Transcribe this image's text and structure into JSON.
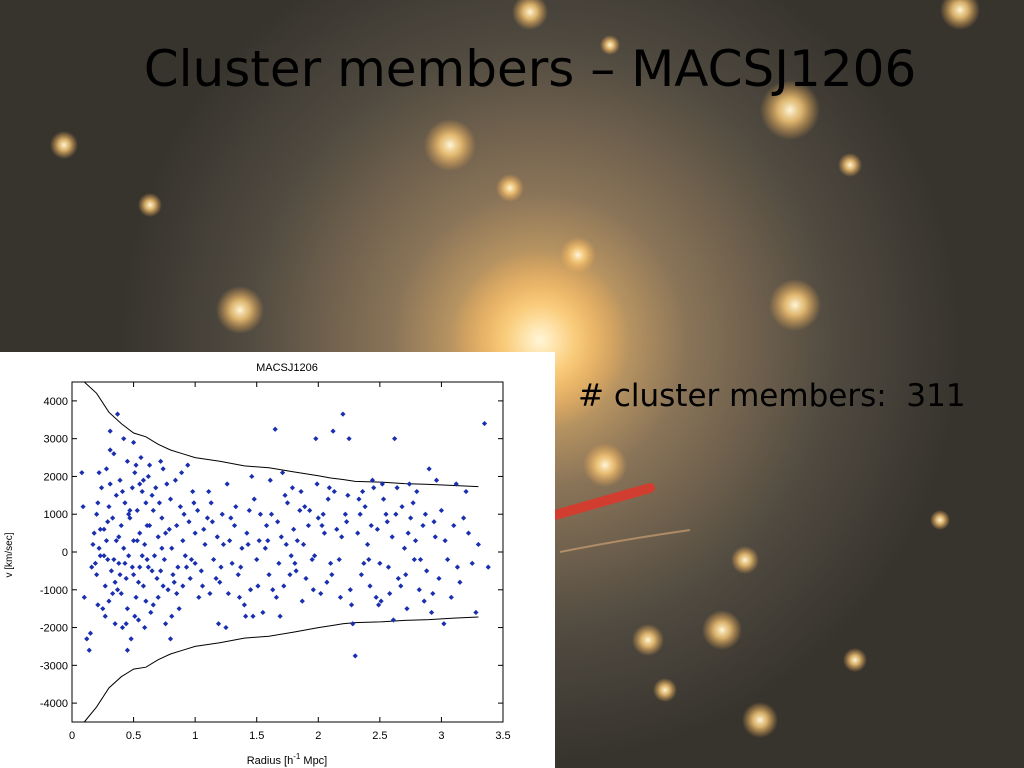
{
  "slide": {
    "title": "Cluster members – MACSJ1206",
    "member_count_text": "# cluster members:  311"
  },
  "chart_data": {
    "type": "scatter",
    "title": "MACSJ1206",
    "xlabel_parts": [
      "Radius [h",
      "-1",
      " Mpc]"
    ],
    "ylabel": "v [km/sec]",
    "xlim": [
      0,
      3.5
    ],
    "ylim": [
      -4500,
      4500
    ],
    "xticks": [
      "0",
      "0.5",
      "1",
      "1.5",
      "2",
      "2.5",
      "3",
      "3.5"
    ],
    "yticks": [
      "-4000",
      "-3000",
      "-2000",
      "-1000",
      "0",
      "1000",
      "2000",
      "3000",
      "4000"
    ],
    "grid": false,
    "marker_color": "#1a2fb0",
    "caustic_upper": [
      [
        0.1,
        4500
      ],
      [
        0.2,
        4200
      ],
      [
        0.3,
        3700
      ],
      [
        0.4,
        3400
      ],
      [
        0.5,
        3150
      ],
      [
        0.6,
        3050
      ],
      [
        0.7,
        2850
      ],
      [
        0.8,
        2700
      ],
      [
        0.9,
        2600
      ],
      [
        1.0,
        2500
      ],
      [
        1.2,
        2400
      ],
      [
        1.4,
        2280
      ],
      [
        1.6,
        2230
      ],
      [
        1.8,
        2120
      ],
      [
        2.0,
        2020
      ],
      [
        2.1,
        1960
      ],
      [
        2.2,
        1920
      ],
      [
        2.3,
        1870
      ],
      [
        2.5,
        1850
      ],
      [
        2.7,
        1810
      ],
      [
        2.9,
        1790
      ],
      [
        3.1,
        1760
      ],
      [
        3.3,
        1730
      ]
    ],
    "caustic_lower": [
      [
        0.1,
        -4500
      ],
      [
        0.2,
        -4100
      ],
      [
        0.3,
        -3600
      ],
      [
        0.4,
        -3300
      ],
      [
        0.5,
        -3100
      ],
      [
        0.6,
        -3050
      ],
      [
        0.7,
        -2850
      ],
      [
        0.8,
        -2700
      ],
      [
        0.9,
        -2600
      ],
      [
        1.0,
        -2500
      ],
      [
        1.2,
        -2400
      ],
      [
        1.4,
        -2280
      ],
      [
        1.6,
        -2230
      ],
      [
        1.8,
        -2120
      ],
      [
        2.0,
        -2000
      ],
      [
        2.1,
        -1950
      ],
      [
        2.2,
        -1900
      ],
      [
        2.3,
        -1870
      ],
      [
        2.5,
        -1850
      ],
      [
        2.7,
        -1810
      ],
      [
        2.9,
        -1790
      ],
      [
        3.1,
        -1750
      ],
      [
        3.3,
        -1720
      ]
    ],
    "points": [
      [
        0.08,
        2100
      ],
      [
        0.09,
        1200
      ],
      [
        0.1,
        -1200
      ],
      [
        0.12,
        -2300
      ],
      [
        0.14,
        -2600
      ],
      [
        0.15,
        -2150
      ],
      [
        0.16,
        -400
      ],
      [
        0.17,
        200
      ],
      [
        0.18,
        500
      ],
      [
        0.2,
        1000
      ],
      [
        0.2,
        -600
      ],
      [
        0.21,
        -1400
      ],
      [
        0.22,
        100
      ],
      [
        0.22,
        2100
      ],
      [
        0.23,
        -100
      ],
      [
        0.24,
        1700
      ],
      [
        0.25,
        -1500
      ],
      [
        0.26,
        600
      ],
      [
        0.27,
        -900
      ],
      [
        0.28,
        300
      ],
      [
        0.28,
        2200
      ],
      [
        0.29,
        -200
      ],
      [
        0.3,
        1200
      ],
      [
        0.3,
        -1300
      ],
      [
        0.31,
        3200
      ],
      [
        0.32,
        -500
      ],
      [
        0.33,
        900
      ],
      [
        0.34,
        2600
      ],
      [
        0.35,
        -800
      ],
      [
        0.36,
        1500
      ],
      [
        0.37,
        3650
      ],
      [
        0.38,
        -300
      ],
      [
        0.38,
        400
      ],
      [
        0.39,
        1900
      ],
      [
        0.4,
        -1100
      ],
      [
        0.4,
        700
      ],
      [
        0.41,
        -2000
      ],
      [
        0.42,
        100
      ],
      [
        0.43,
        1300
      ],
      [
        0.44,
        -700
      ],
      [
        0.45,
        2400
      ],
      [
        0.45,
        -1500
      ],
      [
        0.46,
        -100
      ],
      [
        0.47,
        900
      ],
      [
        0.48,
        -2300
      ],
      [
        0.49,
        1700
      ],
      [
        0.5,
        300
      ],
      [
        0.5,
        -600
      ],
      [
        0.51,
        2100
      ],
      [
        0.52,
        -1200
      ],
      [
        0.53,
        1100
      ],
      [
        0.54,
        -1800
      ],
      [
        0.55,
        500
      ],
      [
        0.55,
        -400
      ],
      [
        0.56,
        2500
      ],
      [
        0.57,
        1600
      ],
      [
        0.58,
        -900
      ],
      [
        0.59,
        200
      ],
      [
        0.6,
        1300
      ],
      [
        0.6,
        -1300
      ],
      [
        0.61,
        -200
      ],
      [
        0.62,
        2000
      ],
      [
        0.63,
        700
      ],
      [
        0.64,
        -1600
      ],
      [
        0.65,
        -500
      ],
      [
        0.66,
        1100
      ],
      [
        0.67,
        -100
      ],
      [
        0.68,
        1700
      ],
      [
        0.7,
        400
      ],
      [
        0.7,
        -1200
      ],
      [
        0.72,
        -500
      ],
      [
        0.73,
        900
      ],
      [
        0.74,
        2200
      ],
      [
        0.75,
        -200
      ],
      [
        0.76,
        500
      ],
      [
        0.78,
        -1000
      ],
      [
        0.8,
        1400
      ],
      [
        0.8,
        -2300
      ],
      [
        0.81,
        100
      ],
      [
        0.82,
        -600
      ],
      [
        0.84,
        1900
      ],
      [
        0.85,
        700
      ],
      [
        0.86,
        -400
      ],
      [
        0.88,
        1200
      ],
      [
        0.9,
        -900
      ],
      [
        0.9,
        300
      ],
      [
        0.92,
        -100
      ],
      [
        0.94,
        2300
      ],
      [
        0.95,
        800
      ],
      [
        0.96,
        -700
      ],
      [
        0.98,
        1600
      ],
      [
        1.0,
        -300
      ],
      [
        1.0,
        500
      ],
      [
        1.02,
        1100
      ],
      [
        1.05,
        -500
      ],
      [
        1.08,
        200
      ],
      [
        1.1,
        900
      ],
      [
        1.12,
        -1100
      ],
      [
        1.15,
        -200
      ],
      [
        1.18,
        400
      ],
      [
        1.2,
        -800
      ],
      [
        1.22,
        1000
      ],
      [
        1.25,
        -2000
      ],
      [
        1.28,
        300
      ],
      [
        1.3,
        -300
      ],
      [
        1.32,
        700
      ],
      [
        1.35,
        -600
      ],
      [
        1.38,
        100
      ],
      [
        1.4,
        -1400
      ],
      [
        1.42,
        500
      ],
      [
        1.45,
        -1000
      ],
      [
        1.48,
        1400
      ],
      [
        1.5,
        -200
      ],
      [
        1.52,
        300
      ],
      [
        1.55,
        -1600
      ],
      [
        1.58,
        700
      ],
      [
        1.6,
        -600
      ],
      [
        1.62,
        1000
      ],
      [
        1.65,
        3250
      ],
      [
        1.68,
        -300
      ],
      [
        1.7,
        400
      ],
      [
        1.72,
        -900
      ],
      [
        1.75,
        1300
      ],
      [
        1.78,
        -100
      ],
      [
        1.8,
        600
      ],
      [
        1.82,
        -500
      ],
      [
        1.85,
        1100
      ],
      [
        1.88,
        200
      ],
      [
        1.9,
        -700
      ],
      [
        1.92,
        700
      ],
      [
        1.95,
        -200
      ],
      [
        1.98,
        3000
      ],
      [
        2.0,
        900
      ],
      [
        2.02,
        -1100
      ],
      [
        2.05,
        500
      ],
      [
        2.08,
        1400
      ],
      [
        2.1,
        -300
      ],
      [
        2.12,
        3200
      ],
      [
        2.15,
        600
      ],
      [
        2.18,
        -1200
      ],
      [
        2.2,
        3650
      ],
      [
        2.22,
        1000
      ],
      [
        2.25,
        3000
      ],
      [
        2.28,
        -1900
      ],
      [
        2.3,
        -2750
      ],
      [
        2.32,
        500
      ],
      [
        2.35,
        -600
      ],
      [
        2.38,
        1200
      ],
      [
        2.4,
        200
      ],
      [
        2.42,
        -900
      ],
      [
        2.45,
        1700
      ],
      [
        2.48,
        600
      ],
      [
        2.5,
        -300
      ],
      [
        2.52,
        1800
      ],
      [
        2.55,
        1000
      ],
      [
        2.58,
        -1100
      ],
      [
        2.6,
        400
      ],
      [
        2.62,
        3000
      ],
      [
        2.65,
        -700
      ],
      [
        2.68,
        1200
      ],
      [
        2.7,
        100
      ],
      [
        2.72,
        -1500
      ],
      [
        2.75,
        900
      ],
      [
        2.78,
        -200
      ],
      [
        2.8,
        1600
      ],
      [
        2.82,
        -1000
      ],
      [
        2.85,
        700
      ],
      [
        2.88,
        -500
      ],
      [
        2.9,
        2200
      ],
      [
        2.92,
        -1600
      ],
      [
        2.95,
        400
      ],
      [
        2.98,
        -700
      ],
      [
        3.0,
        1100
      ],
      [
        3.05,
        -200
      ],
      [
        3.1,
        700
      ],
      [
        3.15,
        -800
      ],
      [
        3.2,
        1600
      ],
      [
        3.22,
        500
      ],
      [
        3.25,
        -300
      ],
      [
        3.3,
        200
      ],
      [
        3.35,
        3400
      ],
      [
        3.38,
        -400
      ],
      [
        0.26,
        -100
      ],
      [
        0.29,
        800
      ],
      [
        0.33,
        -1100
      ],
      [
        0.36,
        300
      ],
      [
        0.39,
        -600
      ],
      [
        0.43,
        -300
      ],
      [
        0.47,
        1100
      ],
      [
        0.51,
        -1700
      ],
      [
        0.53,
        300
      ],
      [
        0.57,
        -100
      ],
      [
        0.61,
        700
      ],
      [
        0.65,
        1500
      ],
      [
        0.69,
        -700
      ],
      [
        0.73,
        100
      ],
      [
        0.77,
        1800
      ],
      [
        0.83,
        -800
      ],
      [
        0.87,
        -1500
      ],
      [
        0.91,
        1000
      ],
      [
        0.97,
        -200
      ],
      [
        1.03,
        -1200
      ],
      [
        1.07,
        600
      ],
      [
        1.13,
        1300
      ],
      [
        1.17,
        -700
      ],
      [
        1.23,
        200
      ],
      [
        1.27,
        -1100
      ],
      [
        1.33,
        1200
      ],
      [
        1.37,
        -400
      ],
      [
        1.43,
        200
      ],
      [
        1.47,
        -1700
      ],
      [
        1.53,
        1000
      ],
      [
        1.57,
        100
      ],
      [
        1.63,
        -1000
      ],
      [
        1.67,
        800
      ],
      [
        1.73,
        1500
      ],
      [
        1.77,
        -600
      ],
      [
        1.83,
        300
      ],
      [
        1.87,
        -1300
      ],
      [
        1.93,
        1100
      ],
      [
        1.97,
        -100
      ],
      [
        2.03,
        700
      ],
      [
        2.07,
        -800
      ],
      [
        2.13,
        1600
      ],
      [
        2.17,
        -200
      ],
      [
        2.23,
        800
      ],
      [
        2.27,
        -1400
      ],
      [
        2.33,
        1400
      ],
      [
        2.37,
        -300
      ],
      [
        2.43,
        700
      ],
      [
        2.47,
        -1200
      ],
      [
        2.53,
        1400
      ],
      [
        2.57,
        -400
      ],
      [
        2.63,
        1000
      ],
      [
        2.67,
        -900
      ],
      [
        2.73,
        500
      ],
      [
        2.77,
        1300
      ],
      [
        2.83,
        -200
      ],
      [
        2.87,
        1000
      ],
      [
        2.93,
        -1100
      ],
      [
        3.03,
        300
      ],
      [
        3.13,
        -400
      ],
      [
        0.19,
        -300
      ],
      [
        0.21,
        1300
      ],
      [
        0.23,
        600
      ],
      [
        0.27,
        -1700
      ],
      [
        0.31,
        1800
      ],
      [
        0.34,
        -200
      ],
      [
        0.37,
        -1000
      ],
      [
        0.41,
        1600
      ],
      [
        0.44,
        -1900
      ],
      [
        0.46,
        1000
      ],
      [
        0.49,
        -400
      ],
      [
        0.52,
        2300
      ],
      [
        0.54,
        -800
      ],
      [
        0.58,
        1900
      ],
      [
        0.62,
        -400
      ],
      [
        0.66,
        -1400
      ],
      [
        0.71,
        1300
      ],
      [
        0.74,
        -900
      ],
      [
        0.79,
        600
      ],
      [
        0.85,
        -1100
      ],
      [
        0.93,
        -400
      ],
      [
        0.99,
        1300
      ],
      [
        1.06,
        -900
      ],
      [
        1.14,
        800
      ],
      [
        1.21,
        -400
      ],
      [
        1.29,
        900
      ],
      [
        1.36,
        -1200
      ],
      [
        1.44,
        1100
      ],
      [
        1.51,
        -900
      ],
      [
        1.59,
        300
      ],
      [
        1.66,
        -1200
      ],
      [
        1.74,
        200
      ],
      [
        1.81,
        -300
      ],
      [
        1.89,
        1200
      ],
      [
        1.96,
        -1000
      ],
      [
        2.04,
        1000
      ],
      [
        2.11,
        -600
      ],
      [
        2.19,
        400
      ],
      [
        2.26,
        -1000
      ],
      [
        2.34,
        1000
      ],
      [
        2.41,
        -200
      ],
      [
        2.49,
        -1400
      ],
      [
        2.56,
        800
      ],
      [
        2.64,
        1700
      ],
      [
        2.71,
        -600
      ],
      [
        2.79,
        300
      ],
      [
        2.86,
        -1300
      ],
      [
        2.94,
        800
      ],
      [
        3.08,
        -1200
      ],
      [
        3.18,
        900
      ],
      [
        0.31,
        2700
      ],
      [
        0.42,
        3000
      ],
      [
        0.5,
        2900
      ],
      [
        0.55,
        1800
      ],
      [
        0.63,
        2300
      ],
      [
        0.72,
        2400
      ],
      [
        0.76,
        -1900
      ],
      [
        0.89,
        2100
      ],
      [
        1.11,
        1600
      ],
      [
        1.26,
        1800
      ],
      [
        1.46,
        2000
      ],
      [
        1.61,
        1900
      ],
      [
        1.71,
        2100
      ],
      [
        1.79,
        1700
      ],
      [
        1.86,
        1600
      ],
      [
        1.99,
        1800
      ],
      [
        2.09,
        1700
      ],
      [
        2.24,
        1500
      ],
      [
        2.36,
        1600
      ],
      [
        2.44,
        1900
      ],
      [
        2.51,
        -1300
      ],
      [
        2.61,
        -1800
      ],
      [
        2.74,
        1800
      ],
      [
        2.96,
        1900
      ],
      [
        3.02,
        -1900
      ],
      [
        3.12,
        1800
      ],
      [
        3.28,
        -1600
      ],
      [
        0.35,
        -1900
      ],
      [
        0.45,
        -2600
      ],
      [
        0.59,
        -2000
      ],
      [
        0.81,
        -1700
      ],
      [
        1.19,
        -1900
      ],
      [
        1.41,
        -1700
      ],
      [
        1.69,
        -1700
      ]
    ]
  }
}
